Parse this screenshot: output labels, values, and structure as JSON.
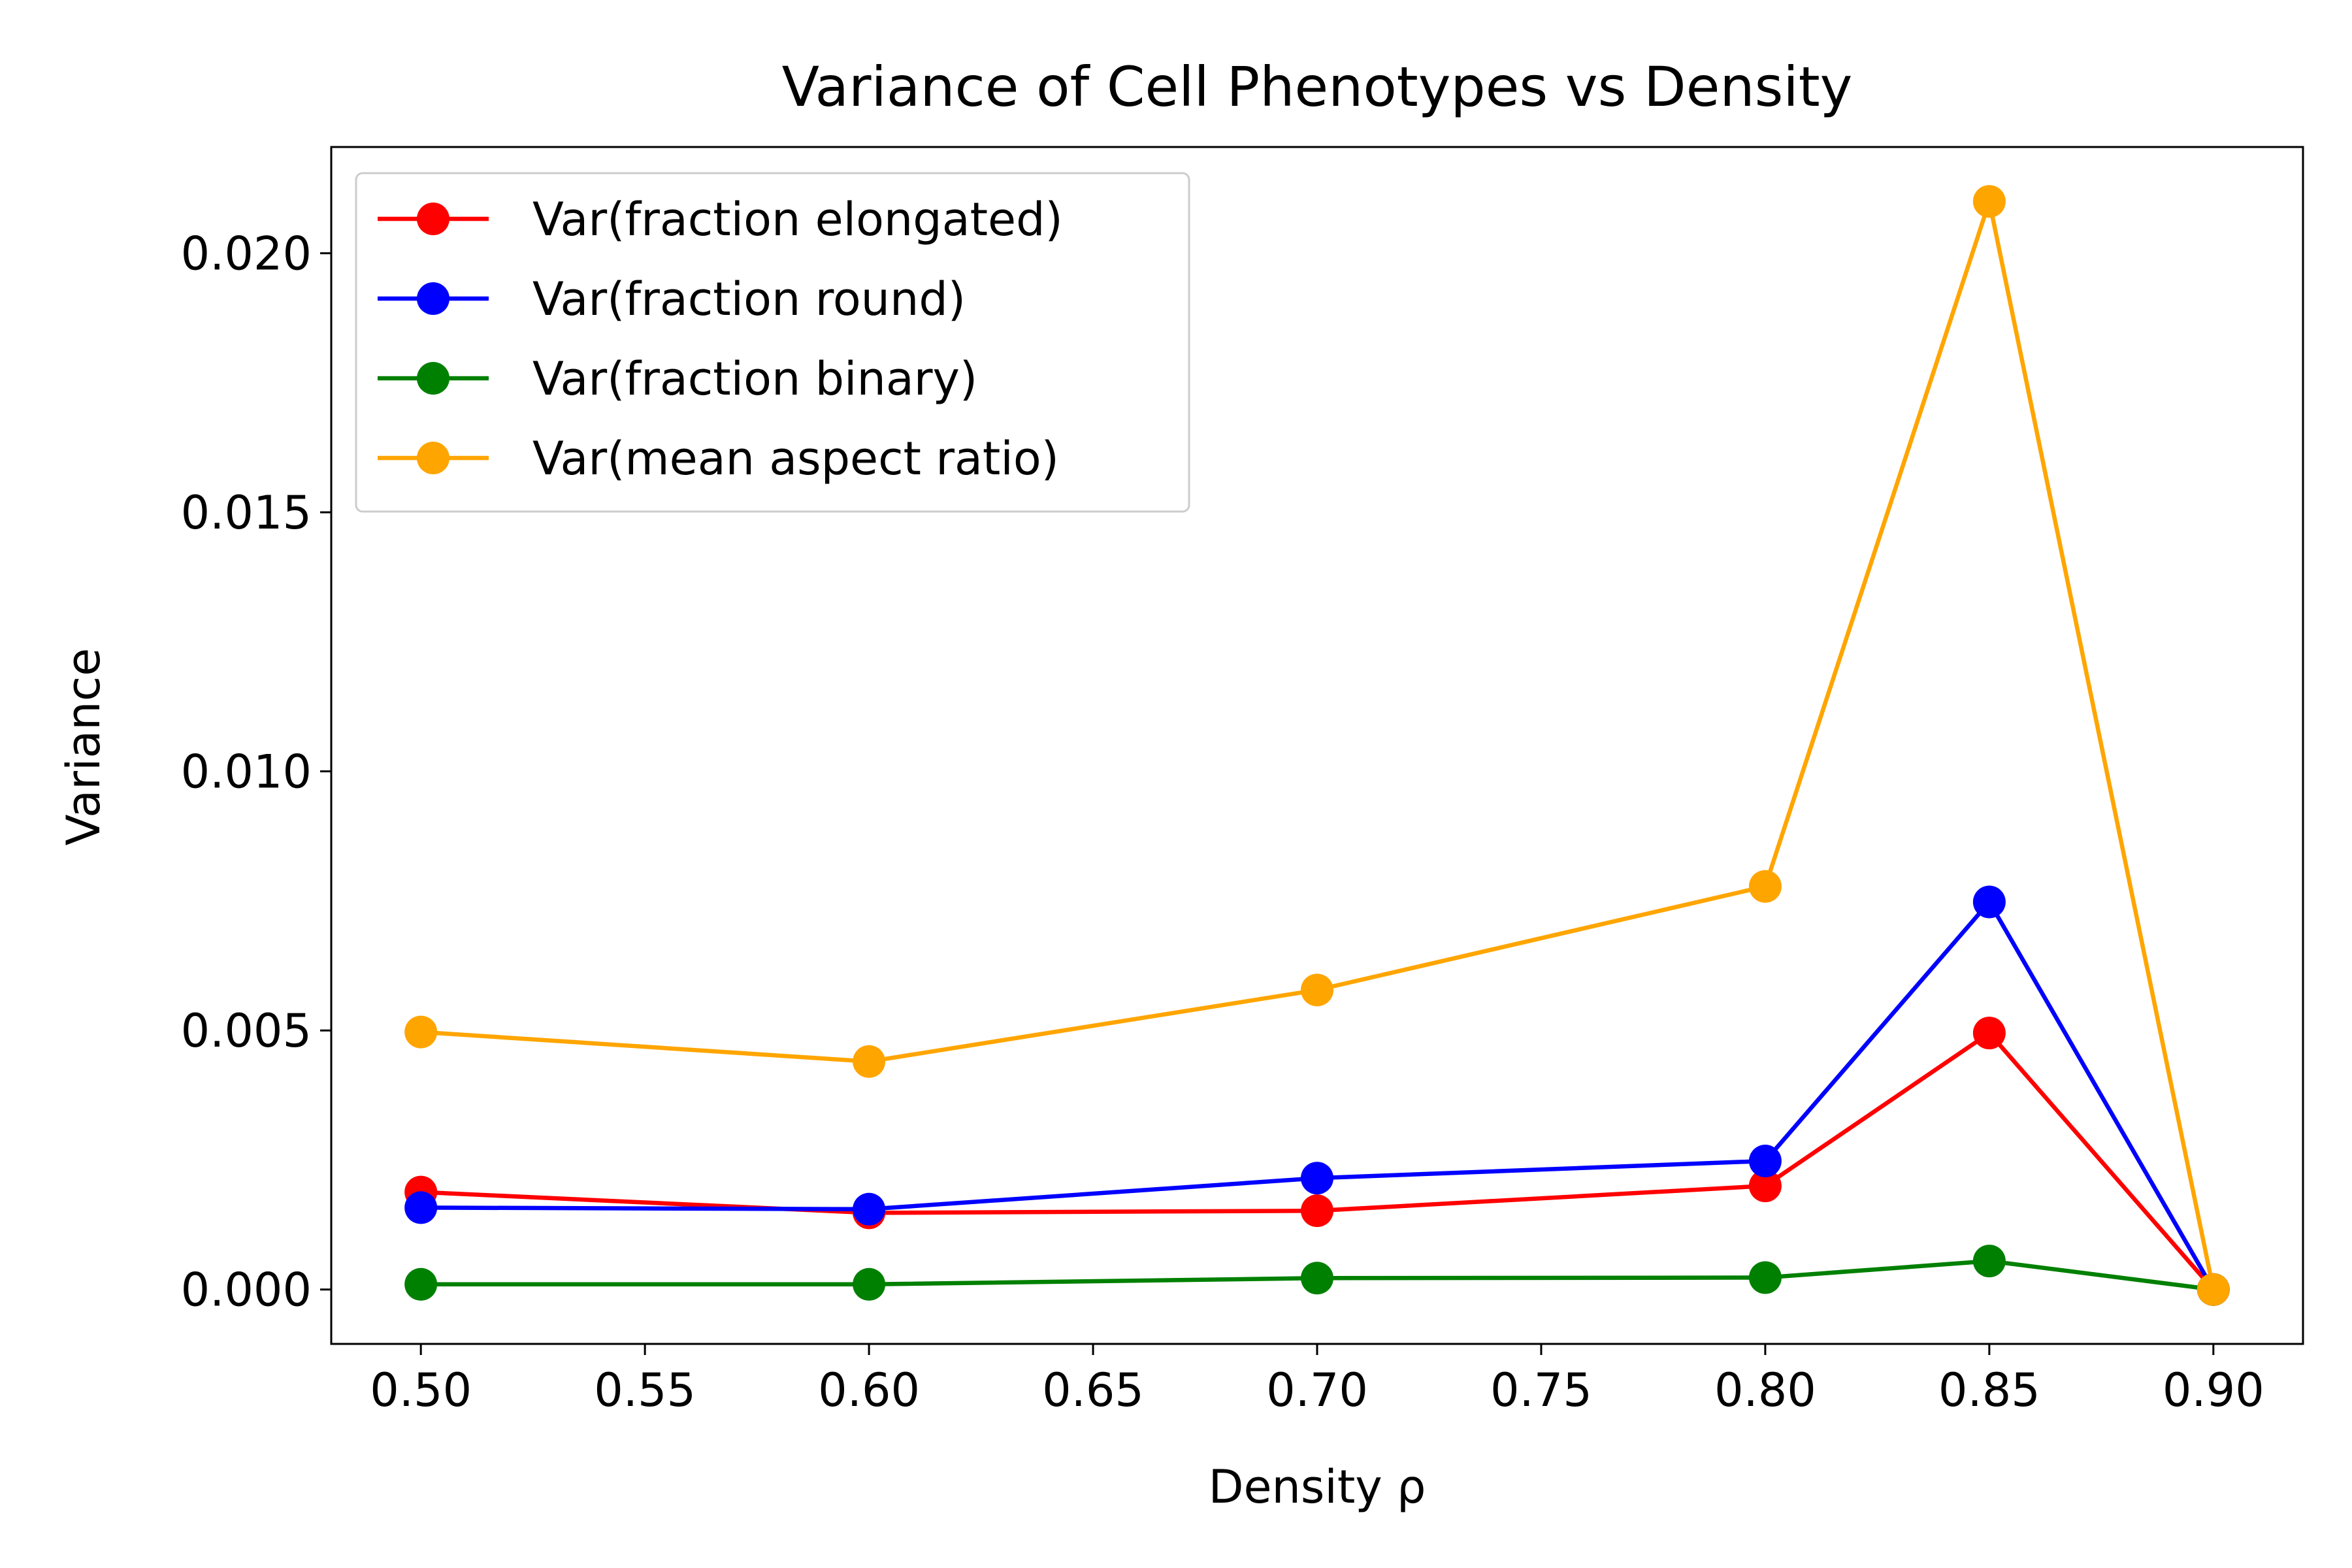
{
  "chart_data": {
    "type": "line",
    "title": "Variance of Cell Phenotypes vs Density",
    "xlabel": "Density ρ",
    "ylabel": "Variance",
    "x": [
      0.5,
      0.6,
      0.7,
      0.8,
      0.85,
      0.9
    ],
    "xlim": [
      0.48,
      0.92
    ],
    "ylim": [
      -0.00105,
      0.02205
    ],
    "x_ticks": [
      0.5,
      0.55,
      0.6,
      0.65,
      0.7,
      0.75,
      0.8,
      0.85,
      0.9
    ],
    "x_tick_labels": [
      "0.50",
      "0.55",
      "0.60",
      "0.65",
      "0.70",
      "0.75",
      "0.80",
      "0.85",
      "0.90"
    ],
    "y_ticks": [
      0.0,
      0.005,
      0.01,
      0.015,
      0.02
    ],
    "y_tick_labels": [
      "0.000",
      "0.005",
      "0.010",
      "0.015",
      "0.020"
    ],
    "grid": false,
    "legend_position": "upper-left",
    "series": [
      {
        "name": "Var(fraction elongated)",
        "color": "#ff0000",
        "values": [
          0.00188,
          0.00148,
          0.00152,
          0.002,
          0.00495,
          0.0
        ]
      },
      {
        "name": "Var(fraction round)",
        "color": "#0000ff",
        "values": [
          0.00158,
          0.00155,
          0.00215,
          0.00248,
          0.00748,
          0.0
        ]
      },
      {
        "name": "Var(fraction binary)",
        "color": "#008000",
        "values": [
          0.0001,
          0.0001,
          0.00022,
          0.00023,
          0.00055,
          0.0
        ]
      },
      {
        "name": "Var(mean aspect ratio)",
        "color": "#ffa500",
        "values": [
          0.00497,
          0.0044,
          0.00578,
          0.00778,
          0.021,
          0.0
        ]
      }
    ]
  }
}
